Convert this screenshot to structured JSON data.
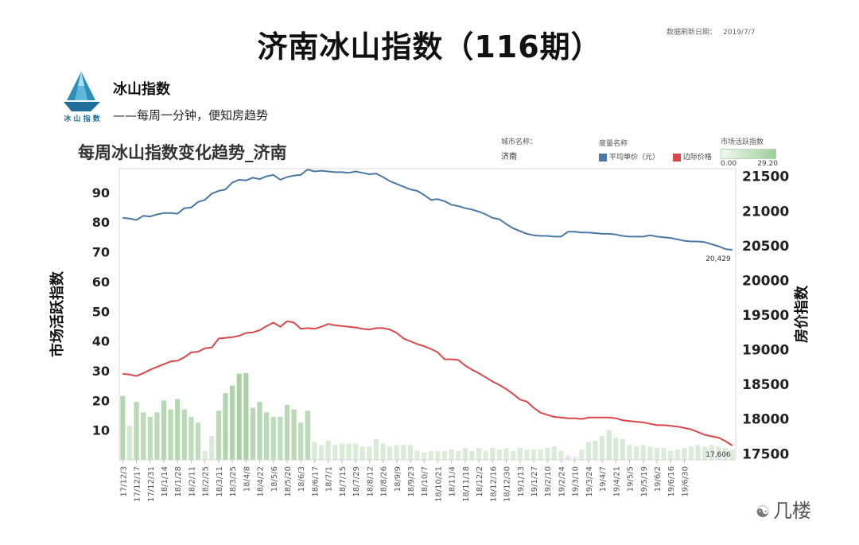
{
  "header": {
    "title": "济南冰山指数（116期）",
    "refresh_label": "数据刷新日期：",
    "refresh_date": "2019/7/7"
  },
  "brand": {
    "logo_text": "冰 山 指 数",
    "name": "冰山指数",
    "slogan": "——每周一分钟，便知房趋势"
  },
  "filters": {
    "city_label": "城市名称：",
    "city_value": "济南",
    "measure_label": "度量名称",
    "measure_items": [
      "平均单价（元）",
      "边际价格"
    ],
    "activity_label": "市场活跃指数",
    "activity_min": "0.00",
    "activity_max": "29.20"
  },
  "watermark": "几楼",
  "colors": {
    "avg_price": "#4a78a6",
    "marginal_price": "#d9474b",
    "bars": "#c4dfc0",
    "bars_strong": "#a9d1a4"
  },
  "chart_data": {
    "type": "bar+line",
    "title": "每周冰山指数变化趋势_济南",
    "ylabel_left": "市场活跃指数",
    "ylabel_right": "房价指数",
    "ylim_left": [
      0,
      98
    ],
    "ylim_right": [
      17400,
      21600
    ],
    "yticks_left": [
      "90",
      "80",
      "70",
      "60",
      "50",
      "40",
      "30",
      "20",
      "10"
    ],
    "yticks_right": [
      "21500",
      "21000",
      "20500",
      "20000",
      "19500",
      "19000",
      "18500",
      "18000",
      "17500"
    ],
    "xticks": [
      "17/12/3",
      "17/12/17",
      "17/12/31",
      "18/1/14",
      "18/1/28",
      "18/2/11",
      "18/2/25",
      "18/3/11",
      "18/3/25",
      "18/4/8",
      "18/4/22",
      "18/5/6",
      "18/5/20",
      "18/6/3",
      "18/6/17",
      "18/7/1",
      "18/7/15",
      "18/7/29",
      "18/8/12",
      "18/8/26",
      "18/9/9",
      "18/9/23",
      "18/10/7",
      "18/10/21",
      "18/11/4",
      "18/11/18",
      "18/12/2",
      "18/12/16",
      "18/12/30",
      "19/1/13",
      "19/1/27",
      "19/2/10",
      "19/2/24",
      "19/3/10",
      "19/3/24",
      "19/4/7",
      "19/4/21",
      "19/5/5",
      "19/5/19",
      "19/6/2",
      "19/6/16",
      "19/6/30"
    ],
    "end_labels": {
      "avg_price": "20,429",
      "marginal_price": "17,606"
    },
    "series": [
      {
        "name": "市场活跃指数",
        "type": "bar",
        "values": [
          21.5,
          11.5,
          19.5,
          16,
          14.5,
          16,
          20,
          17,
          20.5,
          17,
          14.5,
          12.5,
          3,
          8,
          16.5,
          22.5,
          25,
          29,
          29.2,
          17.5,
          19.5,
          16,
          14.5,
          14.5,
          18.5,
          17,
          12.5,
          16.5,
          6,
          5,
          6.5,
          5,
          5.5,
          5.5,
          5.5,
          4.5,
          4.5,
          7,
          5.5,
          4.5,
          5,
          5,
          5,
          3,
          2.5,
          3,
          3,
          3,
          3.5,
          3,
          4,
          3,
          4,
          3,
          4,
          3.5,
          4,
          3,
          4,
          3.5,
          3.5,
          3.5,
          4,
          4.5,
          3,
          1.5,
          1,
          3.5,
          6,
          6.5,
          8,
          10,
          7.5,
          7,
          5,
          4.5,
          5,
          4.5,
          4,
          4,
          3,
          3.5,
          4,
          4.5,
          5,
          4.5,
          5,
          4.5,
          4,
          3.5
        ]
      },
      {
        "name": "平均单价（元）",
        "type": "line",
        "values": [
          20890,
          20880,
          20860,
          20920,
          20910,
          20940,
          20960,
          20960,
          20950,
          21030,
          21040,
          21120,
          21150,
          21240,
          21280,
          21300,
          21400,
          21440,
          21430,
          21470,
          21450,
          21490,
          21510,
          21440,
          21480,
          21500,
          21510,
          21590,
          21560,
          21570,
          21560,
          21550,
          21550,
          21540,
          21560,
          21540,
          21520,
          21530,
          21480,
          21420,
          21380,
          21340,
          21300,
          21280,
          21220,
          21150,
          21160,
          21130,
          21080,
          21060,
          21030,
          21010,
          20980,
          20940,
          20890,
          20870,
          20800,
          20740,
          20700,
          20660,
          20640,
          20630,
          20630,
          20620,
          20620,
          20690,
          20690,
          20680,
          20680,
          20670,
          20660,
          20660,
          20650,
          20630,
          20620,
          20620,
          20620,
          20640,
          20620,
          20610,
          20600,
          20580,
          20560,
          20550,
          20550,
          20540,
          20510,
          20480,
          20440,
          20429
        ]
      },
      {
        "name": "边际价格",
        "type": "line",
        "values": [
          18640,
          18630,
          18610,
          18650,
          18700,
          18740,
          18780,
          18820,
          18830,
          18880,
          18950,
          18960,
          19010,
          19020,
          19150,
          19160,
          19170,
          19190,
          19230,
          19240,
          19270,
          19330,
          19380,
          19320,
          19400,
          19380,
          19290,
          19300,
          19290,
          19320,
          19360,
          19340,
          19330,
          19320,
          19310,
          19290,
          19280,
          19300,
          19300,
          19280,
          19230,
          19150,
          19110,
          19070,
          19040,
          19000,
          18950,
          18850,
          18850,
          18840,
          18760,
          18700,
          18650,
          18590,
          18530,
          18480,
          18420,
          18350,
          18270,
          18240,
          18150,
          18080,
          18050,
          18020,
          18010,
          18000,
          18000,
          17990,
          18010,
          18010,
          18010,
          18010,
          18000,
          17970,
          17960,
          17950,
          17940,
          17920,
          17900,
          17900,
          17890,
          17880,
          17860,
          17840,
          17800,
          17760,
          17740,
          17720,
          17670,
          17606
        ]
      }
    ]
  }
}
